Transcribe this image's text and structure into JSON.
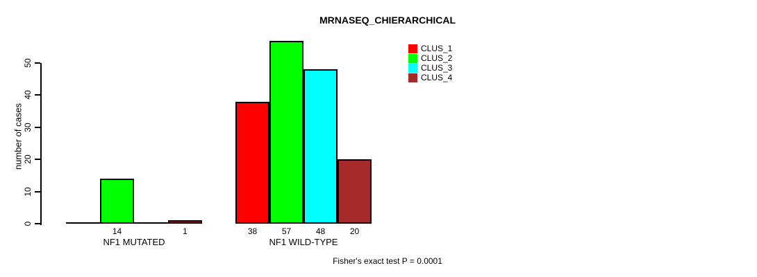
{
  "chart_data": {
    "type": "bar",
    "title": "MRNASEQ_CHIERARCHICAL",
    "ylabel": "number of cases",
    "ylim": [
      0,
      57
    ],
    "yticks": [
      0,
      10,
      20,
      30,
      40,
      50
    ],
    "grid": false,
    "legend_position": "top-right",
    "legend": [
      {
        "label": "CLUS_1",
        "color": "#FF0000"
      },
      {
        "label": "CLUS_2",
        "color": "#00FF00"
      },
      {
        "label": "CLUS_3",
        "color": "#00FFFF"
      },
      {
        "label": "CLUS_4",
        "color": "#A52A2A"
      }
    ],
    "groups": [
      {
        "label": "NF1 MUTATED",
        "bars": [
          {
            "series": "CLUS_1",
            "value": 0,
            "value_label": ""
          },
          {
            "series": "CLUS_2",
            "value": 14,
            "value_label": "14"
          },
          {
            "series": "CLUS_3",
            "value": 0,
            "value_label": ""
          },
          {
            "series": "CLUS_4",
            "value": 1,
            "value_label": "1"
          }
        ]
      },
      {
        "label": "NF1 WILD-TYPE",
        "bars": [
          {
            "series": "CLUS_1",
            "value": 38,
            "value_label": "38"
          },
          {
            "series": "CLUS_2",
            "value": 57,
            "value_label": "57"
          },
          {
            "series": "CLUS_3",
            "value": 48,
            "value_label": "48"
          },
          {
            "series": "CLUS_4",
            "value": 20,
            "value_label": "20"
          }
        ]
      }
    ],
    "annotation": "Fisher's exact test P = 0.0001"
  }
}
